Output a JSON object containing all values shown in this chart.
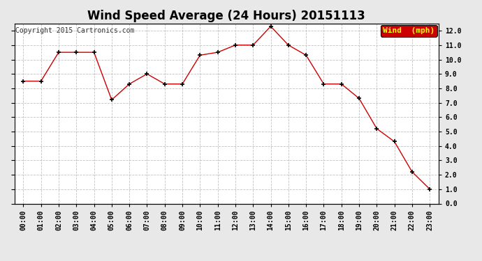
{
  "title": "Wind Speed Average (24 Hours) 20151113",
  "copyright": "Copyright 2015 Cartronics.com",
  "legend_label": "Wind  (mph)",
  "legend_bg": "#cc0000",
  "legend_text_color": "#ffff00",
  "x_labels": [
    "00:00",
    "01:00",
    "02:00",
    "03:00",
    "04:00",
    "05:00",
    "06:00",
    "07:00",
    "08:00",
    "09:00",
    "10:00",
    "11:00",
    "12:00",
    "13:00",
    "14:00",
    "15:00",
    "16:00",
    "17:00",
    "18:00",
    "19:00",
    "20:00",
    "21:00",
    "22:00",
    "23:00"
  ],
  "y_values": [
    8.5,
    8.5,
    10.5,
    10.5,
    10.5,
    7.2,
    8.3,
    9.0,
    8.3,
    8.3,
    10.3,
    10.5,
    11.0,
    11.0,
    12.3,
    11.0,
    10.3,
    8.3,
    8.3,
    7.3,
    5.2,
    4.3,
    2.2,
    1.0
  ],
  "ylim": [
    0.0,
    12.5
  ],
  "yticks": [
    0.0,
    1.0,
    2.0,
    3.0,
    4.0,
    5.0,
    6.0,
    7.0,
    8.0,
    9.0,
    10.0,
    11.0,
    12.0
  ],
  "line_color": "#cc0000",
  "marker": "+",
  "marker_color": "#000000",
  "outer_bg": "#e8e8e8",
  "plot_bg": "#ffffff",
  "grid_color": "#bbbbbb",
  "title_fontsize": 12,
  "copyright_fontsize": 7,
  "tick_fontsize": 7,
  "legend_fontsize": 8
}
